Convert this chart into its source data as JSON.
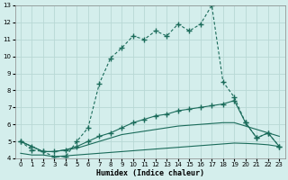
{
  "xlabel": "Humidex (Indice chaleur)",
  "bg_color": "#d4eeec",
  "grid_color": "#b8d8d5",
  "line_color": "#1a6b5a",
  "xlim": [
    -0.5,
    23.5
  ],
  "ylim": [
    4,
    13
  ],
  "yticks": [
    4,
    5,
    6,
    7,
    8,
    9,
    10,
    11,
    12,
    13
  ],
  "xticks": [
    0,
    1,
    2,
    3,
    4,
    5,
    6,
    7,
    8,
    9,
    10,
    11,
    12,
    13,
    14,
    15,
    16,
    17,
    18,
    19,
    20,
    21,
    22,
    23
  ],
  "line1_x": [
    0,
    1,
    2,
    3,
    4,
    5,
    6,
    7,
    8,
    9,
    10,
    11,
    12,
    13,
    14,
    15,
    16,
    17,
    18,
    19,
    20,
    21,
    22,
    23
  ],
  "line1_y": [
    5.0,
    4.5,
    4.4,
    4.1,
    4.1,
    5.0,
    5.8,
    8.4,
    9.9,
    10.5,
    11.2,
    11.0,
    11.5,
    11.2,
    11.9,
    11.5,
    11.9,
    13.0,
    8.5,
    7.6,
    6.1,
    5.2,
    5.5,
    4.7
  ],
  "line2_x": [
    0,
    1,
    2,
    3,
    4,
    5,
    6,
    7,
    8,
    9,
    10,
    11,
    12,
    13,
    14,
    15,
    16,
    17,
    18,
    19,
    20,
    21,
    22,
    23
  ],
  "line2_y": [
    5.0,
    4.7,
    4.4,
    4.4,
    4.5,
    4.7,
    5.0,
    5.3,
    5.5,
    5.8,
    6.1,
    6.3,
    6.5,
    6.6,
    6.8,
    6.9,
    7.0,
    7.1,
    7.2,
    7.4,
    6.1,
    5.2,
    5.5,
    4.7
  ],
  "line3_x": [
    0,
    1,
    2,
    3,
    4,
    5,
    6,
    7,
    8,
    9,
    10,
    11,
    12,
    13,
    14,
    15,
    16,
    17,
    18,
    19,
    20,
    21,
    22,
    23
  ],
  "line3_y": [
    5.0,
    4.7,
    4.4,
    4.4,
    4.5,
    4.6,
    4.8,
    5.0,
    5.2,
    5.4,
    5.5,
    5.6,
    5.7,
    5.8,
    5.9,
    5.95,
    6.0,
    6.05,
    6.1,
    6.1,
    5.9,
    5.7,
    5.5,
    5.3
  ],
  "line4_x": [
    0,
    1,
    2,
    3,
    4,
    5,
    6,
    7,
    8,
    9,
    10,
    11,
    12,
    13,
    14,
    15,
    16,
    17,
    18,
    19,
    20,
    21,
    22,
    23
  ],
  "line4_y": [
    4.3,
    4.2,
    4.2,
    4.1,
    4.15,
    4.2,
    4.25,
    4.3,
    4.35,
    4.4,
    4.45,
    4.5,
    4.55,
    4.6,
    4.65,
    4.7,
    4.75,
    4.8,
    4.85,
    4.9,
    4.88,
    4.85,
    4.8,
    4.7
  ]
}
